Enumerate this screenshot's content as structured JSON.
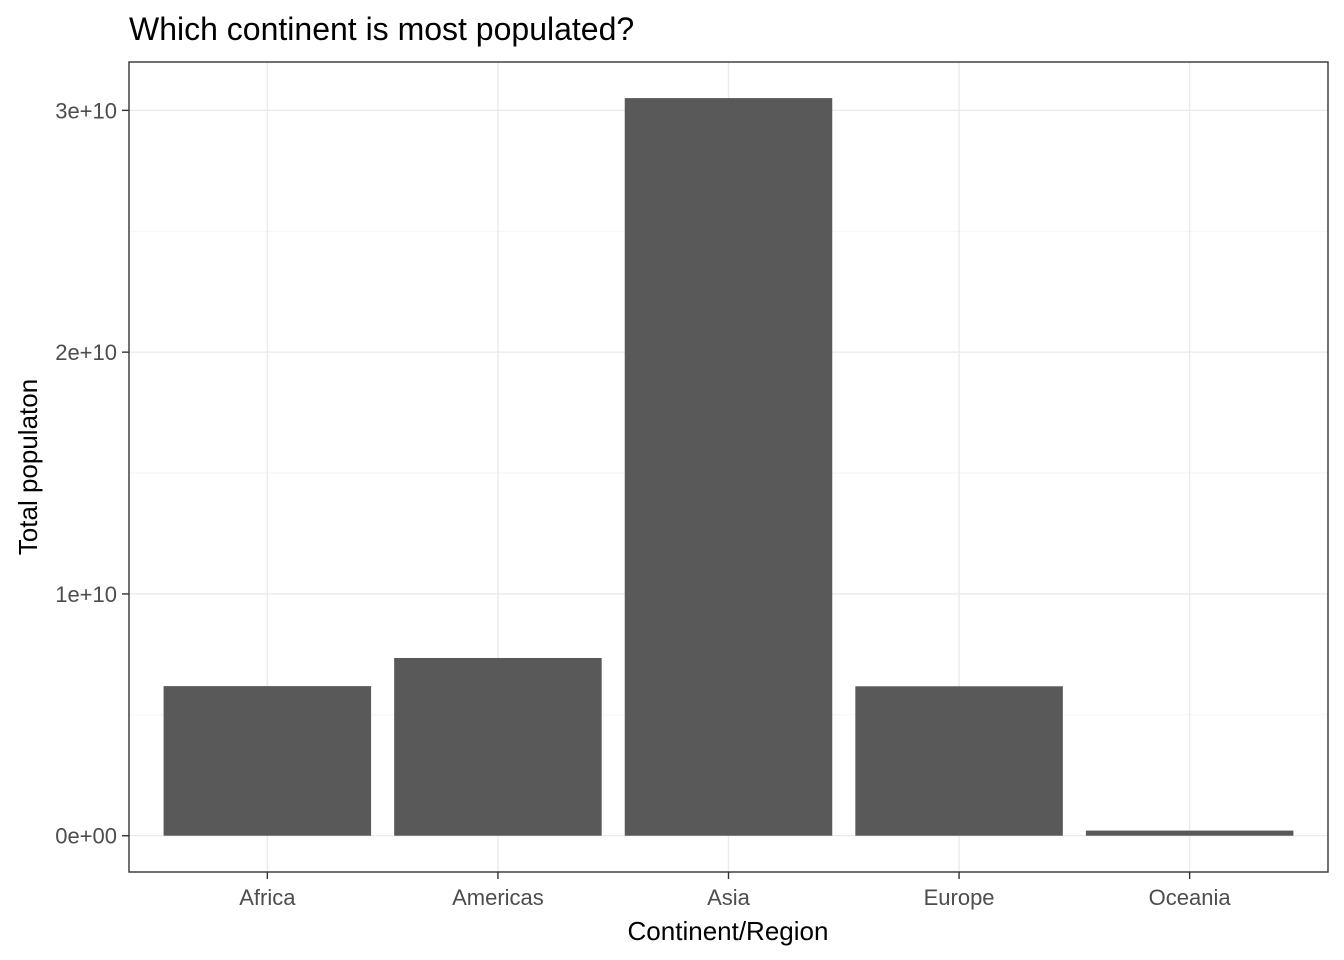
{
  "chart_data": {
    "type": "bar",
    "title": "Which continent is most populated?",
    "xlabel": "Continent/Region",
    "ylabel": "Total populaton",
    "categories": [
      "Africa",
      "Americas",
      "Asia",
      "Europe",
      "Oceania"
    ],
    "values": [
      6187585961,
      7351438499,
      30507333901,
      6181115304,
      212992136
    ],
    "ylim": [
      -1500000000.0,
      32000000000.0
    ],
    "yticks": [
      0,
      10000000000,
      20000000000,
      30000000000
    ],
    "ytick_labels": [
      "0e+00",
      "1e+10",
      "2e+10",
      "3e+10"
    ],
    "grid": true,
    "legend": "none",
    "bar_color": "#595959"
  }
}
